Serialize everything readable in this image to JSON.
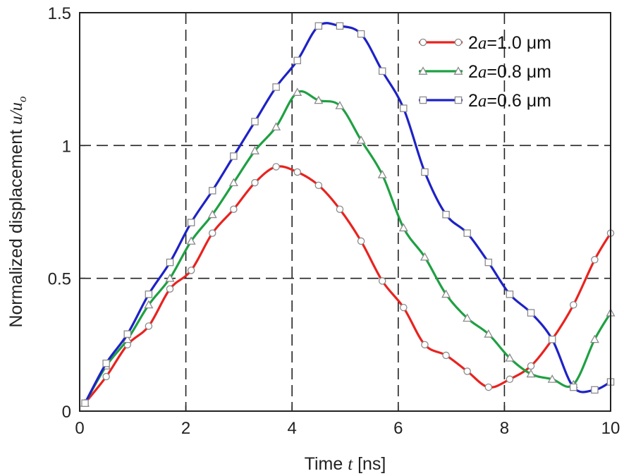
{
  "chart_data": {
    "type": "line",
    "title": "",
    "xlabel": {
      "prefix": "Time ",
      "var": "t",
      "suffix": " [ns]"
    },
    "ylabel": {
      "prefix": "Normalized displacement ",
      "var": "u",
      "sep": "/",
      "var2": "u",
      "sub": "o"
    },
    "xlim": [
      0,
      10
    ],
    "ylim": [
      0,
      1.5
    ],
    "xticks": [
      0,
      2,
      4,
      6,
      8,
      10
    ],
    "xtick_labels": [
      "0",
      "2",
      "4",
      "6",
      "8",
      "10"
    ],
    "yticks": [
      0,
      0.5,
      1,
      1.5
    ],
    "ytick_labels": [
      "0",
      "0.5",
      "1",
      "1.5"
    ],
    "grid": true,
    "legend_position": "top-right",
    "series": [
      {
        "name": "2a=1.0 μm",
        "legend": {
          "pre": "2",
          "var": "a",
          "post": "=1.0 μm"
        },
        "color": "#e8231f",
        "marker": "circle",
        "x": [
          0.1,
          0.5,
          0.9,
          1.3,
          1.7,
          2.1,
          2.5,
          2.9,
          3.3,
          3.7,
          4.1,
          4.5,
          4.9,
          5.3,
          5.7,
          6.1,
          6.5,
          6.9,
          7.3,
          7.7,
          8.1,
          8.5,
          8.9,
          9.3,
          9.7,
          10.0
        ],
        "y": [
          0.03,
          0.13,
          0.25,
          0.32,
          0.46,
          0.53,
          0.67,
          0.76,
          0.86,
          0.92,
          0.9,
          0.85,
          0.76,
          0.64,
          0.49,
          0.39,
          0.25,
          0.21,
          0.15,
          0.09,
          0.12,
          0.17,
          0.27,
          0.4,
          0.57,
          0.67
        ]
      },
      {
        "name": "2a=0.8 μm",
        "legend": {
          "pre": "2",
          "var": "a",
          "post": "=0.8 μm"
        },
        "color": "#1fa043",
        "marker": "triangle",
        "x": [
          0.1,
          0.5,
          0.9,
          1.3,
          1.7,
          2.1,
          2.5,
          2.9,
          3.3,
          3.7,
          4.1,
          4.5,
          4.9,
          5.3,
          5.7,
          6.1,
          6.5,
          6.9,
          7.3,
          7.7,
          8.1,
          8.5,
          8.9,
          9.3,
          9.7,
          10.0
        ],
        "y": [
          0.03,
          0.17,
          0.27,
          0.4,
          0.5,
          0.64,
          0.74,
          0.86,
          0.98,
          1.07,
          1.2,
          1.17,
          1.15,
          1.02,
          0.89,
          0.69,
          0.58,
          0.44,
          0.35,
          0.29,
          0.2,
          0.14,
          0.12,
          0.1,
          0.27,
          0.37
        ]
      },
      {
        "name": "2a=0.6 μm",
        "legend": {
          "pre": "2",
          "var": "a",
          "post": "=0.6 μm"
        },
        "color": "#1e22c6",
        "marker": "square",
        "x": [
          0.1,
          0.5,
          0.9,
          1.3,
          1.7,
          2.1,
          2.5,
          2.9,
          3.3,
          3.7,
          4.1,
          4.5,
          4.9,
          5.3,
          5.7,
          6.1,
          6.5,
          6.9,
          7.3,
          7.7,
          8.1,
          8.5,
          8.9,
          9.3,
          9.7,
          10.0
        ],
        "y": [
          0.03,
          0.18,
          0.29,
          0.44,
          0.56,
          0.71,
          0.83,
          0.96,
          1.09,
          1.22,
          1.32,
          1.45,
          1.45,
          1.42,
          1.28,
          1.14,
          0.9,
          0.74,
          0.67,
          0.56,
          0.44,
          0.37,
          0.27,
          0.09,
          0.08,
          0.11
        ]
      }
    ]
  }
}
